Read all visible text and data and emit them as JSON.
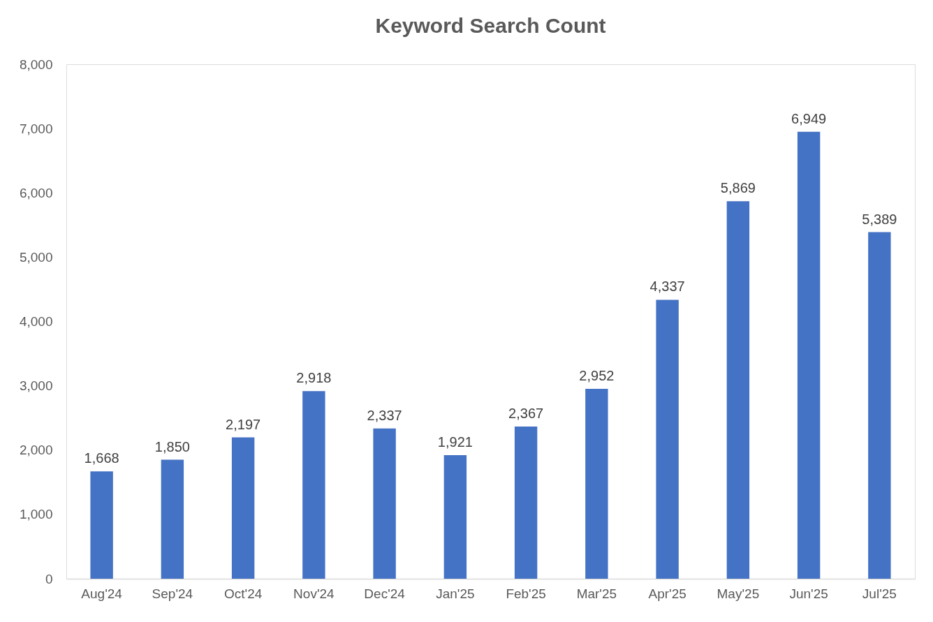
{
  "chart_data": {
    "type": "bar",
    "title": "Keyword Search Count",
    "categories": [
      "Aug'24",
      "Sep'24",
      "Oct'24",
      "Nov'24",
      "Dec'24",
      "Jan'25",
      "Feb'25",
      "Mar'25",
      "Apr'25",
      "May'25",
      "Jun'25",
      "Jul'25"
    ],
    "values": [
      1668,
      1850,
      2197,
      2918,
      2337,
      1921,
      2367,
      2952,
      4337,
      5869,
      6949,
      5389
    ],
    "value_labels": [
      "1,668",
      "1,850",
      "2,197",
      "2,918",
      "2,337",
      "1,921",
      "2,367",
      "2,952",
      "4,337",
      "5,869",
      "6,949",
      "5,389"
    ],
    "color": "#4472c4",
    "ylim": [
      0,
      8000
    ],
    "yticks": [
      0,
      {
        "value": 1000,
        "label": "1,000"
      },
      {
        "value": 2000,
        "label": "2,000"
      },
      {
        "value": 3000,
        "label": "3,000"
      },
      {
        "value": 4000,
        "label": "4,000"
      },
      {
        "value": 5000,
        "label": "5,000"
      },
      {
        "value": 6000,
        "label": "6,000"
      },
      {
        "value": 7000,
        "label": "7,000"
      },
      {
        "value": 8000,
        "label": "8,000"
      }
    ]
  }
}
